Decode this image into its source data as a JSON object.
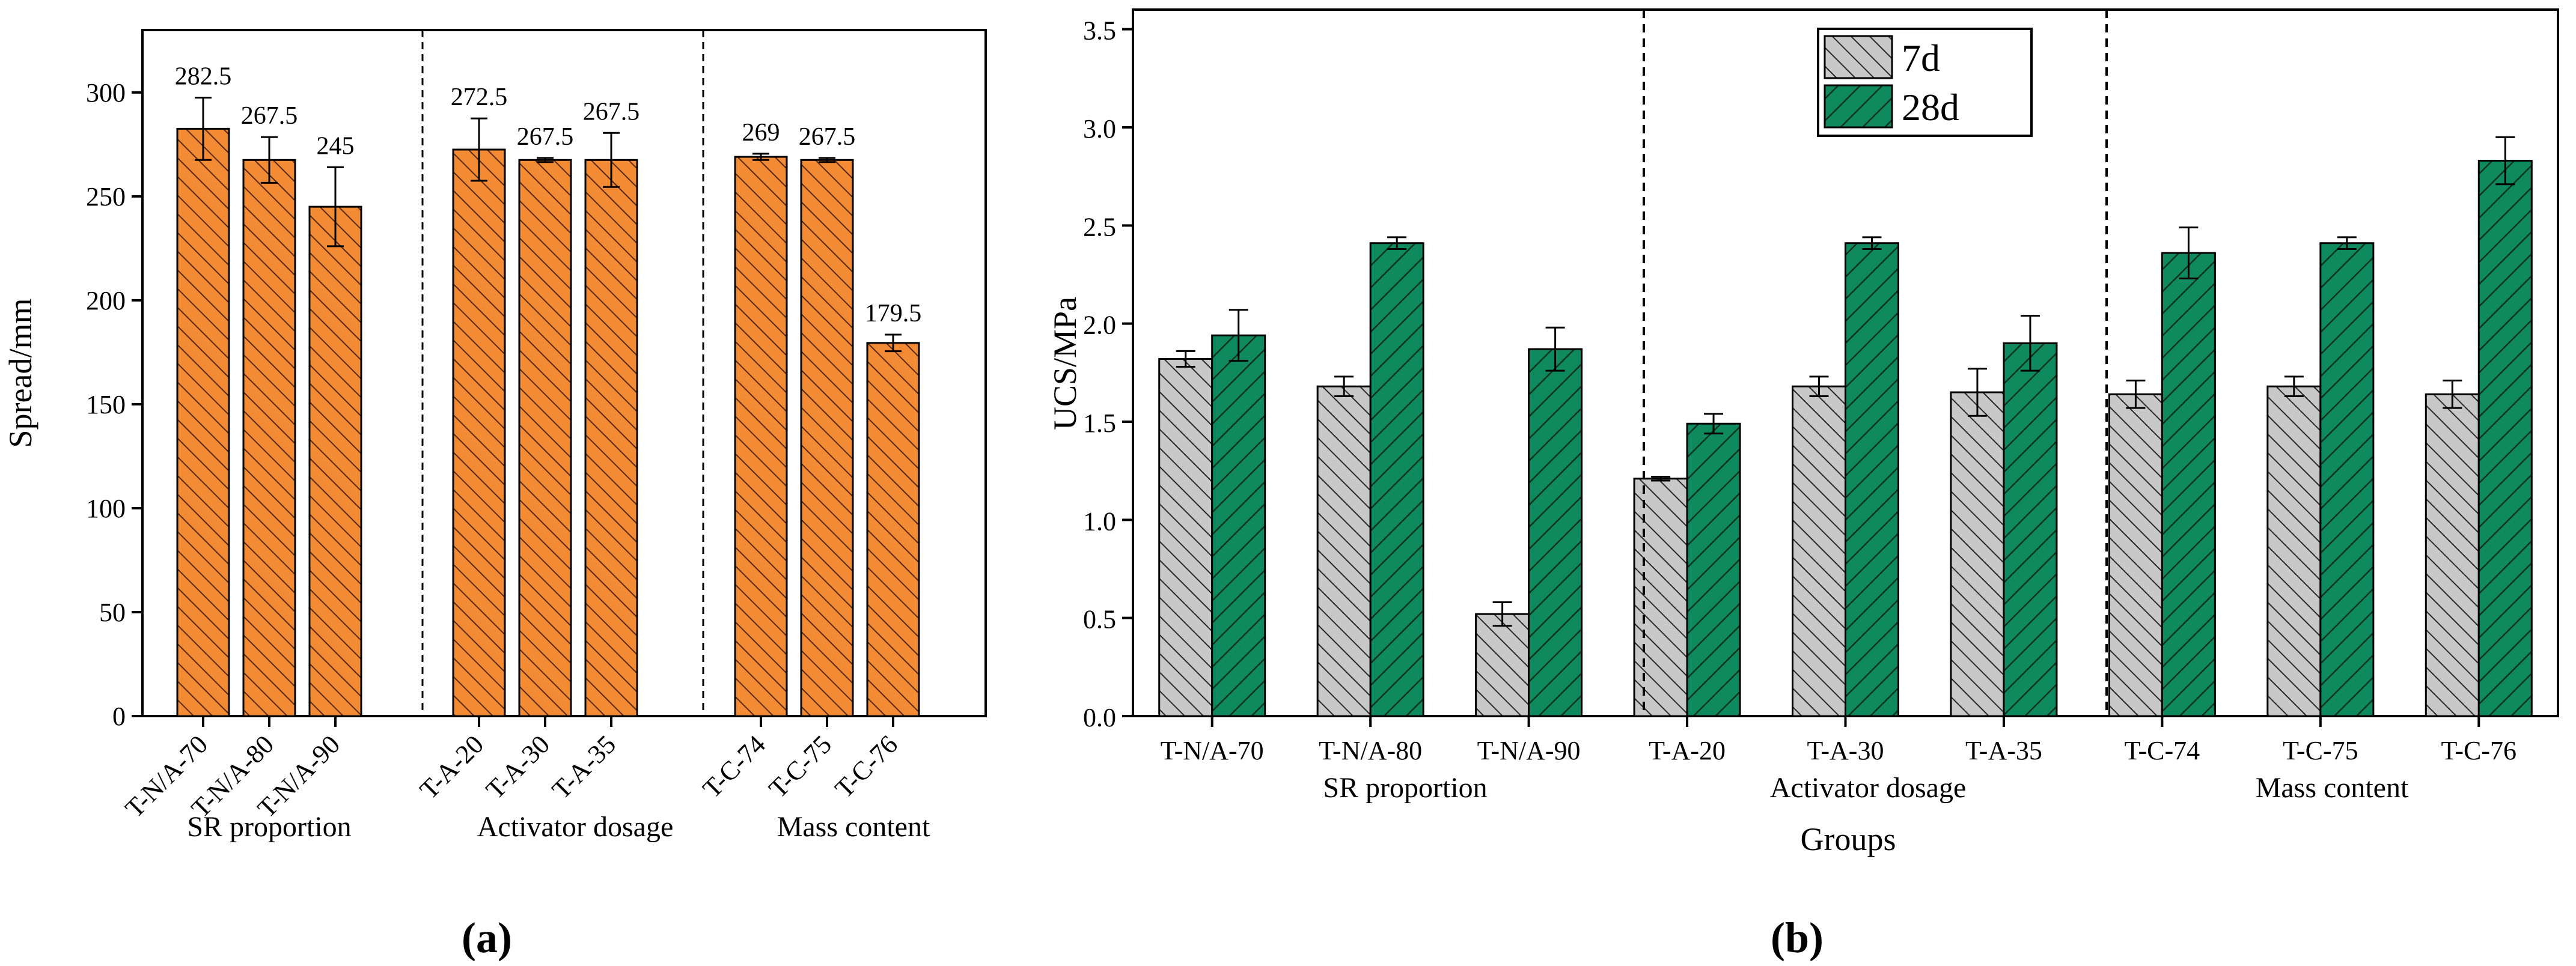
{
  "chart_data": [
    {
      "panel": "(a)",
      "type": "bar",
      "ylabel": "Spread/mm",
      "xlabel": "",
      "ylim": [
        0,
        330
      ],
      "yticks": [
        0,
        50,
        100,
        150,
        200,
        250,
        300
      ],
      "grid": false,
      "groups": [
        {
          "label": "SR proportion",
          "categories": [
            "T-N/A-70",
            "T-N/A-80",
            "T-N/A-90"
          ],
          "values": [
            282.5,
            267.5,
            245
          ],
          "errors": [
            15,
            11,
            19
          ],
          "value_labels": [
            "282.5",
            "267.5",
            "245"
          ]
        },
        {
          "label": "Activator dosage",
          "categories": [
            "T-A-20",
            "T-A-30",
            "T-A-35"
          ],
          "values": [
            272.5,
            267.5,
            267.5
          ],
          "errors": [
            15,
            1,
            13
          ],
          "value_labels": [
            "272.5",
            "267.5",
            "267.5"
          ]
        },
        {
          "label": "Mass content",
          "categories": [
            "T-C-74",
            "T-C-75",
            "T-C-76"
          ],
          "values": [
            269,
            267.5,
            179.5
          ],
          "errors": [
            1.5,
            1,
            4
          ],
          "value_labels": [
            "269",
            "267.5",
            "179.5"
          ]
        }
      ],
      "colors": {
        "bar": "#F28B34",
        "hatch": "#5a2a08"
      }
    },
    {
      "panel": "(b)",
      "type": "bar",
      "ylabel": "UCS/MPa",
      "xlabel": "Groups",
      "ylim": [
        0,
        3.6
      ],
      "yticks": [
        "0.0",
        "0.5",
        "1.0",
        "1.5",
        "2.0",
        "2.5",
        "3.0",
        "3.5"
      ],
      "grid": false,
      "legend": {
        "position": "top-center",
        "entries": [
          "7d",
          "28d"
        ]
      },
      "categories": [
        "T-N/A-70",
        "T-N/A-80",
        "T-N/A-90",
        "T-A-20",
        "T-A-30",
        "T-A-35",
        "T-C-74",
        "T-C-75",
        "T-C-76"
      ],
      "group_labels": [
        "SR proportion",
        "Activator dosage",
        "Mass content"
      ],
      "series": [
        {
          "name": "7d",
          "values": [
            1.82,
            1.68,
            0.52,
            1.21,
            1.68,
            1.65,
            1.64,
            1.68,
            1.64
          ],
          "errors": [
            0.04,
            0.05,
            0.06,
            0.01,
            0.05,
            0.12,
            0.07,
            0.05,
            0.07
          ],
          "color": "#C8C8C8"
        },
        {
          "name": "28d",
          "values": [
            1.94,
            2.41,
            1.87,
            1.49,
            2.41,
            1.9,
            2.36,
            2.41,
            2.83
          ],
          "errors": [
            0.13,
            0.03,
            0.11,
            0.05,
            0.03,
            0.14,
            0.13,
            0.03,
            0.12
          ],
          "color": "#0E8A5E"
        }
      ]
    }
  ],
  "panel_labels": [
    "(a)",
    "(b)"
  ]
}
